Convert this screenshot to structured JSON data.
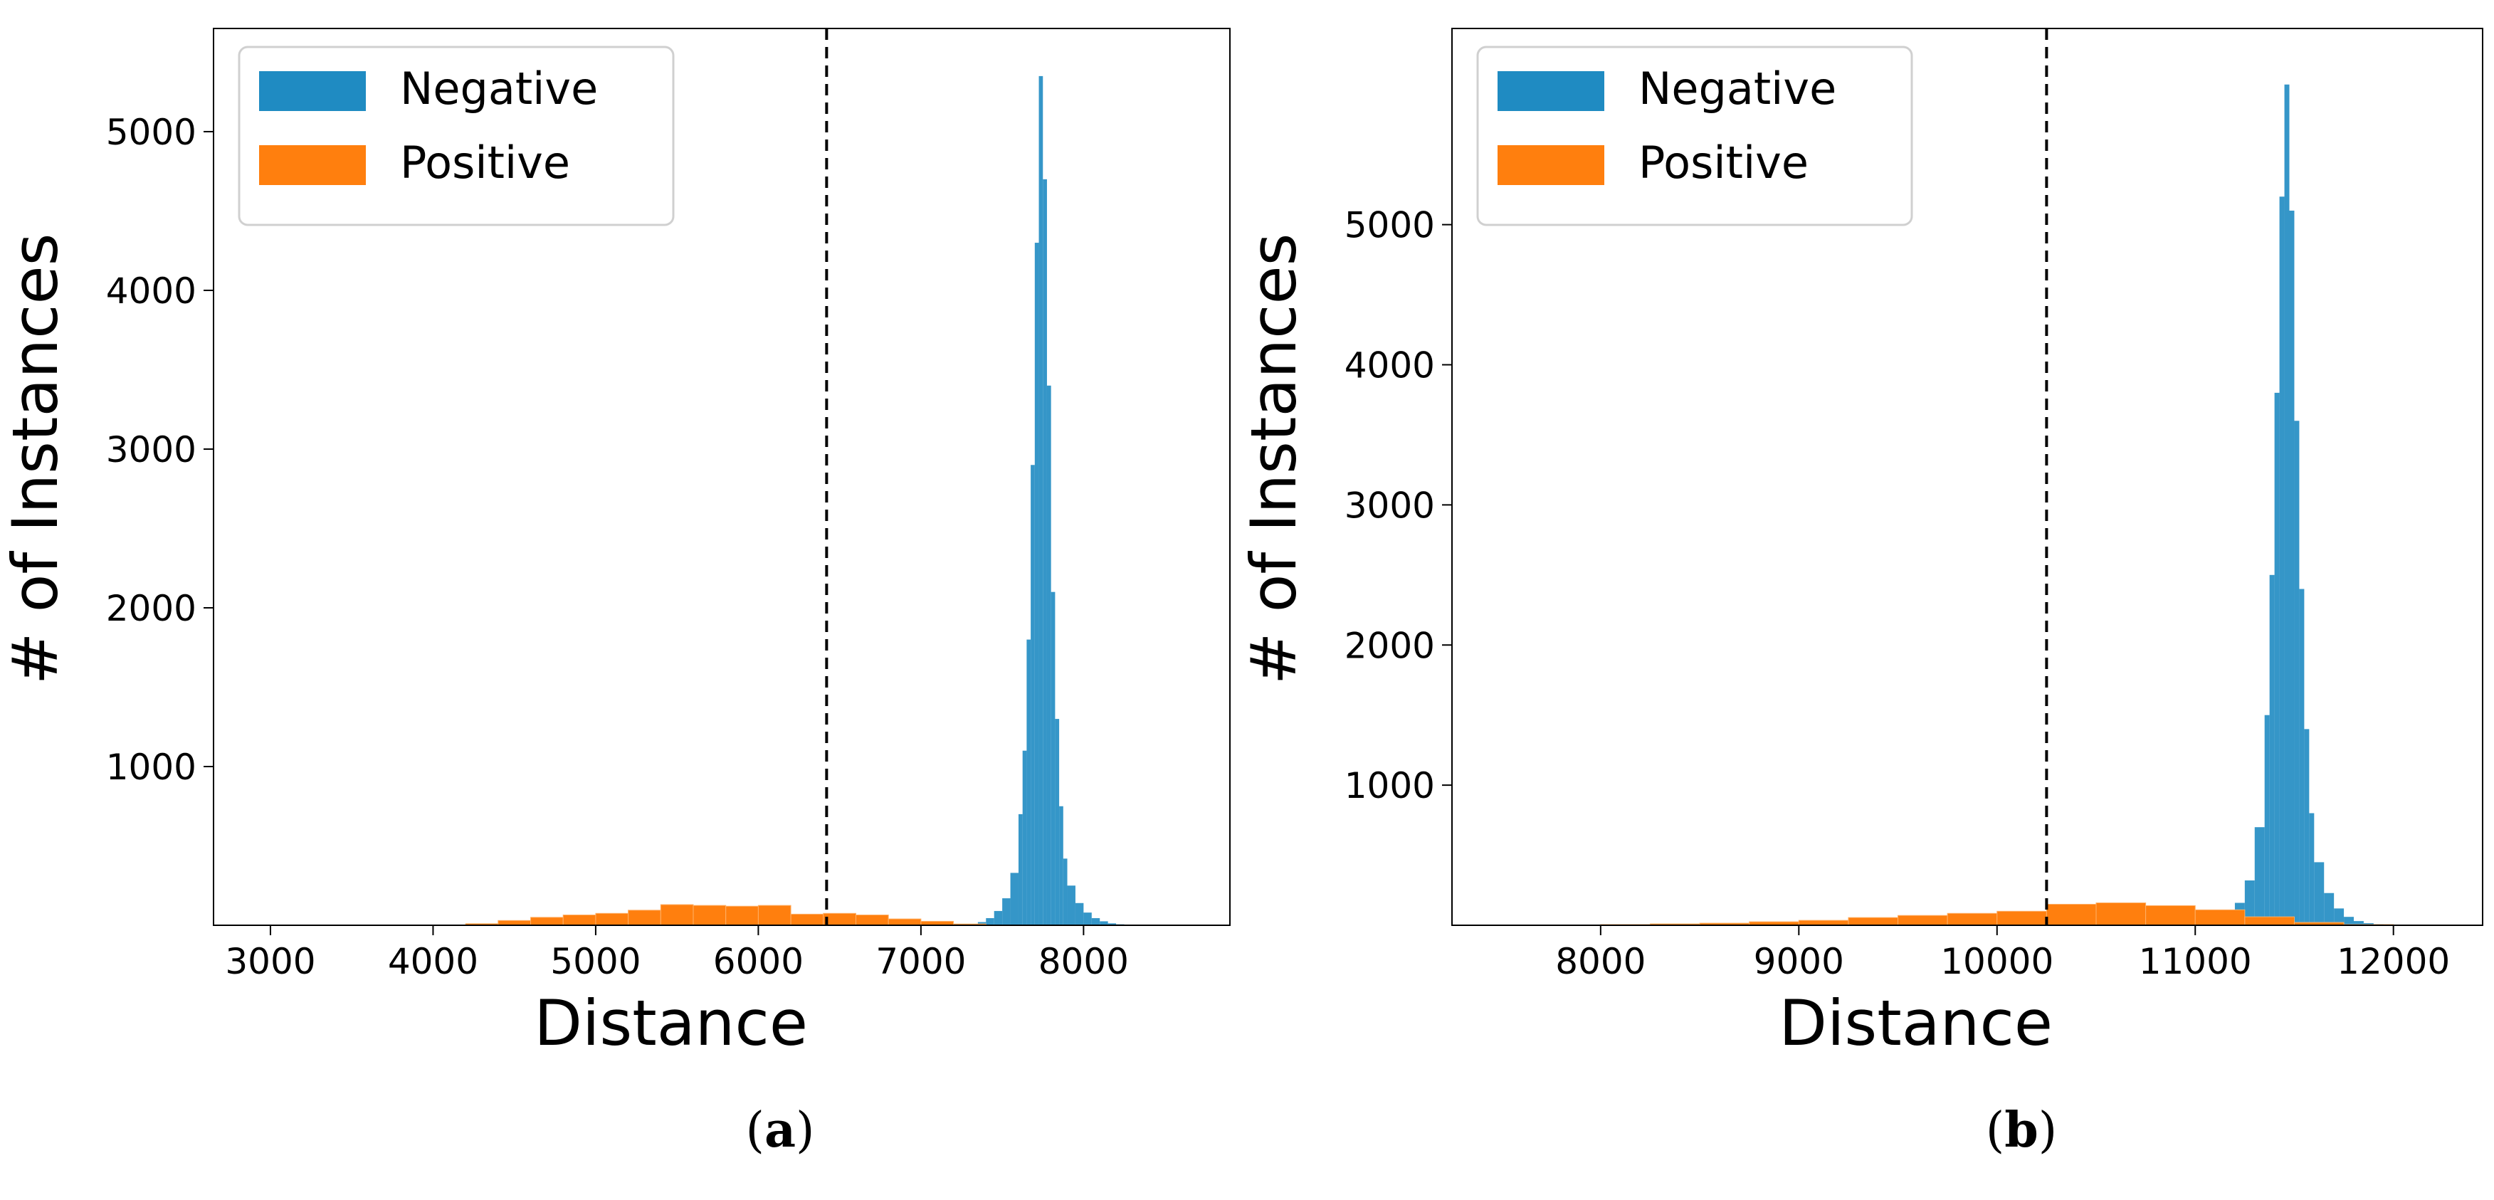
{
  "colors": {
    "negative": "#1f8bc2",
    "positive": "#ff7f0e",
    "axis": "#000000",
    "threshold": "#000000"
  },
  "chart_data": [
    {
      "type": "bar",
      "panel": "a",
      "caption_letter": "a",
      "xlabel": "Distance",
      "ylabel": "# of Instances",
      "xlim": [
        2650,
        8900
      ],
      "ylim": [
        0,
        5650
      ],
      "xticks": [
        3000,
        4000,
        5000,
        6000,
        7000,
        8000
      ],
      "yticks": [
        1000,
        2000,
        3000,
        4000,
        5000
      ],
      "threshold": 6420,
      "legend": {
        "position": "top-left",
        "entries": [
          "Negative",
          "Positive"
        ]
      },
      "series": [
        {
          "name": "Negative",
          "color": "#1f8bc2",
          "x": [
            7250,
            7300,
            7350,
            7400,
            7450,
            7500,
            7550,
            7600,
            7625,
            7650,
            7675,
            7700,
            7725,
            7750,
            7775,
            7800,
            7825,
            7850,
            7875,
            7900,
            7950,
            8000,
            8050,
            8100,
            8150,
            8200,
            8250,
            8300
          ],
          "values": [
            0,
            8,
            20,
            45,
            90,
            170,
            330,
            700,
            1100,
            1800,
            2900,
            4300,
            5350,
            4700,
            3400,
            2100,
            1300,
            750,
            420,
            250,
            140,
            80,
            45,
            25,
            12,
            6,
            2,
            0
          ]
        },
        {
          "name": "Positive",
          "color": "#ff7f0e",
          "x": [
            4000,
            4200,
            4400,
            4600,
            4800,
            5000,
            5200,
            5400,
            5600,
            5800,
            6000,
            6200,
            6400,
            6600,
            6800,
            7000,
            7200
          ],
          "values": [
            0,
            10,
            30,
            50,
            65,
            75,
            95,
            130,
            125,
            120,
            125,
            70,
            75,
            65,
            40,
            25,
            8
          ]
        }
      ]
    },
    {
      "type": "bar",
      "panel": "b",
      "caption_letter": "b",
      "xlabel": "Distance",
      "ylabel": "# of Instances",
      "xlim": [
        7250,
        12450
      ],
      "ylim": [
        0,
        6400
      ],
      "xticks": [
        8000,
        9000,
        10000,
        11000,
        12000
      ],
      "yticks": [
        1000,
        2000,
        3000,
        4000,
        5000
      ],
      "threshold": 10250,
      "legend": {
        "position": "top-left",
        "entries": [
          "Negative",
          "Positive"
        ]
      },
      "series": [
        {
          "name": "Negative",
          "color": "#1f8bc2",
          "x": [
            11000,
            11050,
            11100,
            11150,
            11200,
            11250,
            11300,
            11350,
            11375,
            11400,
            11425,
            11450,
            11475,
            11500,
            11525,
            11550,
            11575,
            11600,
            11650,
            11700,
            11750,
            11800,
            11850,
            11900,
            11950,
            12000
          ],
          "values": [
            0,
            15,
            40,
            80,
            160,
            320,
            700,
            1500,
            2500,
            3800,
            5200,
            6000,
            5100,
            3600,
            2400,
            1400,
            800,
            450,
            230,
            120,
            60,
            30,
            15,
            8,
            4,
            0
          ]
        },
        {
          "name": "Positive",
          "color": "#ff7f0e",
          "x": [
            8000,
            8250,
            8500,
            8750,
            9000,
            9250,
            9500,
            9750,
            10000,
            10250,
            10500,
            10750,
            11000,
            11250,
            11500,
            11750
          ],
          "values": [
            5,
            10,
            15,
            25,
            35,
            55,
            70,
            85,
            100,
            150,
            160,
            140,
            110,
            60,
            20,
            5
          ]
        }
      ]
    }
  ]
}
